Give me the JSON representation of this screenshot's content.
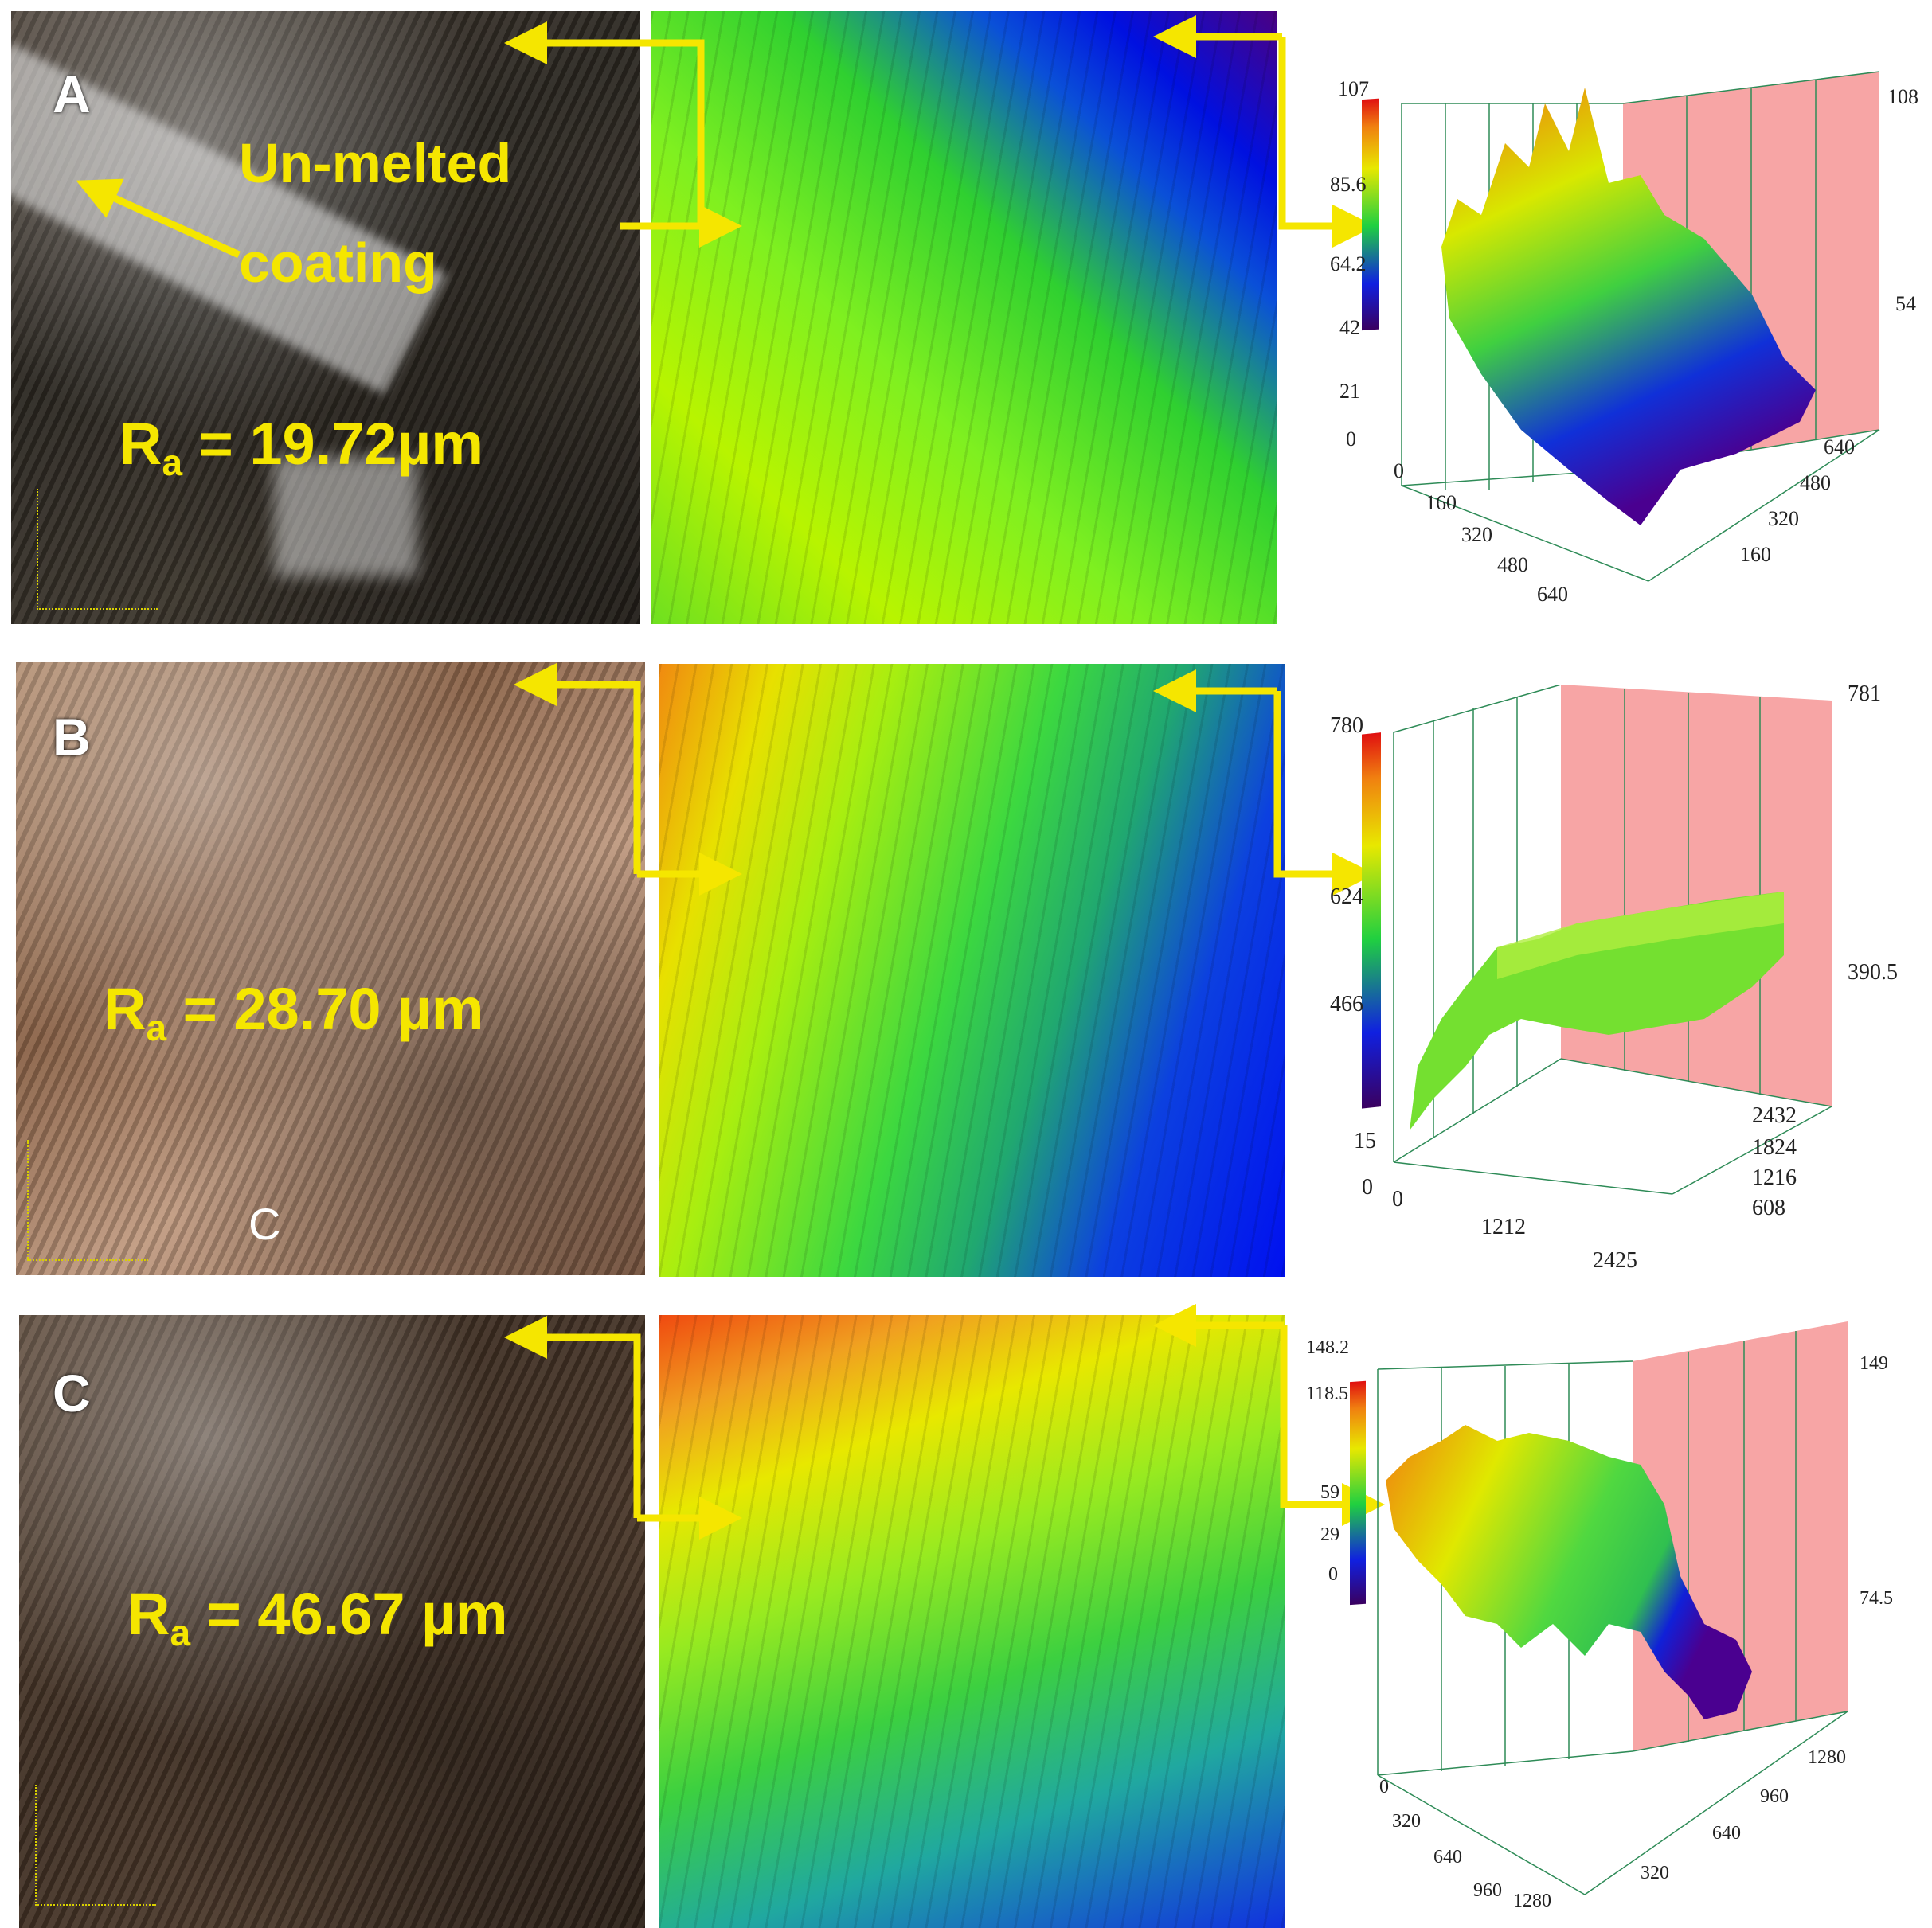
{
  "colors": {
    "annotation": "#f5e600",
    "arrow": "#f5e600",
    "wall": "#f7a5a5",
    "grid": "#2e8b57"
  },
  "panels": [
    {
      "letter": "A",
      "ra_label": "R",
      "ra_sub": "a",
      "ra_value": " = 19.72µm",
      "annotation_line1": "Un-melted",
      "annotation_line2": "coating",
      "plot": {
        "z_max_label": "107",
        "colorbar_ticks": [
          "107",
          "85.6",
          "64.2",
          "42",
          "21",
          "0"
        ],
        "wall_labels": [
          "108",
          "54"
        ],
        "x_ticks": [
          "0",
          "160",
          "320",
          "480",
          "640"
        ],
        "y_ticks": [
          "640",
          "480",
          "320",
          "160"
        ]
      }
    },
    {
      "letter": "B",
      "ra_label": "R",
      "ra_sub": "a",
      "ra_value": " = 28.70 µm",
      "extra_mark": "C",
      "plot": {
        "colorbar_ticks": [
          "780",
          "624",
          "466",
          "15",
          "0"
        ],
        "wall_labels": [
          "781",
          "390.5"
        ],
        "x_ticks": [
          "0",
          "1212",
          "2425"
        ],
        "y_ticks": [
          "2432",
          "1824",
          "1216",
          "608"
        ]
      }
    },
    {
      "letter": "C",
      "ra_label": "R",
      "ra_sub": "a",
      "ra_value": " = 46.67 µm",
      "plot": {
        "colorbar_ticks": [
          "148.2",
          "118.5",
          "59",
          "29",
          "0"
        ],
        "wall_labels": [
          "149",
          "74.5"
        ],
        "x_ticks": [
          "0",
          "320",
          "640",
          "960",
          "1280"
        ],
        "y_ticks": [
          "1280",
          "960",
          "640",
          "320"
        ]
      }
    }
  ]
}
